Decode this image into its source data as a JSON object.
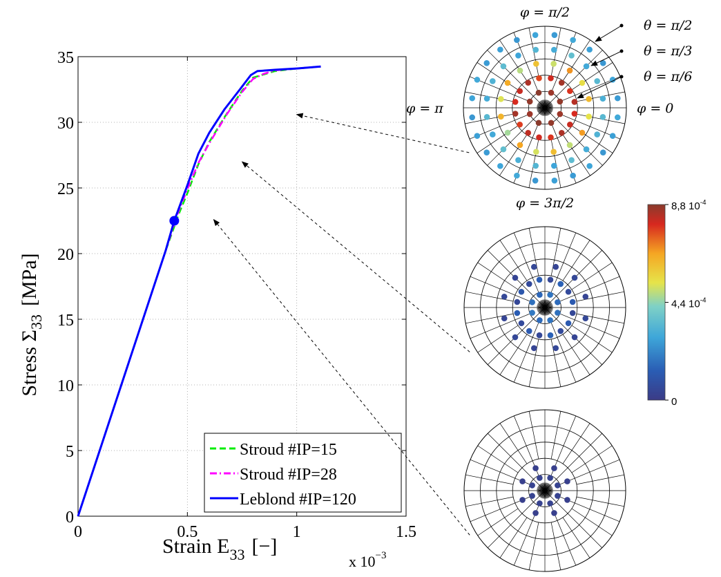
{
  "chart_data": {
    "type": "line",
    "xlabel_main": "Strain E",
    "xlabel_sub": "33",
    "xlabel_unit": "[−]",
    "ylabel_main": "Stress Σ",
    "ylabel_sub": "33",
    "ylabel_unit": "[MPa]",
    "x_multiplier_base": "x 10",
    "x_multiplier_exp": "−3",
    "xlim": [
      0,
      1.5
    ],
    "ylim": [
      0,
      35
    ],
    "xticks": [
      0,
      0.5,
      1,
      1.5
    ],
    "xtick_labels": [
      "0",
      "0.5",
      "1",
      "1.5"
    ],
    "yticks": [
      0,
      5,
      10,
      15,
      20,
      25,
      30,
      35
    ],
    "ytick_labels": [
      "0",
      "5",
      "10",
      "15",
      "20",
      "25",
      "30",
      "35"
    ],
    "grid": true,
    "legend_position": "bottom-right",
    "series": [
      {
        "name": "Stroud #IP=15",
        "color": "#00ee00",
        "style": "dashed",
        "x": [
          0,
          0.2,
          0.4,
          0.46,
          0.5,
          0.55,
          0.6,
          0.67,
          0.75,
          0.8,
          0.9,
          1.0,
          1.11
        ],
        "y": [
          0,
          10.1,
          20.2,
          23.0,
          24.6,
          26.8,
          28.5,
          30.4,
          32.4,
          33.4,
          33.9,
          34.1,
          34.25
        ]
      },
      {
        "name": "Stroud #IP=28",
        "color": "#ff00ff",
        "style": "dashdot",
        "x": [
          0,
          0.2,
          0.4,
          0.45,
          0.5,
          0.55,
          0.6,
          0.68,
          0.75,
          0.8,
          0.85,
          0.9,
          1.0,
          1.11
        ],
        "y": [
          0,
          10.1,
          20.2,
          22.8,
          24.9,
          26.9,
          28.4,
          30.6,
          32.3,
          33.3,
          33.7,
          33.95,
          34.1,
          34.25
        ]
      },
      {
        "name": "Leblond #IP=120",
        "color": "#0000ff",
        "style": "solid",
        "x": [
          0,
          0.2,
          0.4,
          0.44,
          0.5,
          0.55,
          0.6,
          0.67,
          0.74,
          0.79,
          0.82,
          0.9,
          1.0,
          1.11
        ],
        "y": [
          0,
          10.1,
          20.2,
          22.5,
          25.2,
          27.6,
          29.2,
          31.0,
          32.5,
          33.6,
          33.9,
          34.0,
          34.1,
          34.25
        ]
      }
    ],
    "marker_point": {
      "x": 0.44,
      "y": 22.5,
      "color": "#0000ff"
    },
    "polar_plots": [
      {
        "phi_labels": [
          "φ = π/2",
          "φ = π",
          "φ = 0",
          "φ = 3π/2"
        ],
        "theta_labels": [
          "θ = π/2",
          "θ = π/3",
          "θ = π/6"
        ],
        "arrow_target_strain": 1.0,
        "arrow_target_stress": 30.6,
        "rings": [
          {
            "r_frac": 0.2,
            "count": 8,
            "values": [
              8.7,
              8.6,
              8.8,
              8.7,
              8.6,
              8.8,
              8.7,
              8.6
            ]
          },
          {
            "r_frac": 0.37,
            "count": 16,
            "values": [
              8.3,
              7.8,
              8.5,
              8.0,
              7.6,
              8.4,
              8.1,
              7.9,
              8.5,
              7.7,
              8.2,
              8.0,
              7.8,
              8.4,
              8.1,
              7.9
            ]
          },
          {
            "r_frac": 0.55,
            "count": 16,
            "values": [
              6.2,
              5.4,
              6.8,
              5.0,
              6.0,
              4.8,
              6.5,
              5.2,
              6.3,
              4.6,
              6.6,
              5.1,
              6.1,
              4.9,
              6.7,
              5.3
            ]
          },
          {
            "r_frac": 0.72,
            "count": 20,
            "values": [
              3.1,
              3.4,
              2.9,
              3.6,
              3.0,
              3.3,
              2.8,
              3.5,
              3.2,
              3.0,
              3.4,
              2.9,
              3.6,
              3.1,
              3.3,
              2.8,
              3.5,
              3.0,
              3.2,
              3.4
            ]
          },
          {
            "r_frac": 0.9,
            "count": 24,
            "values": [
              2.6,
              2.8,
              2.5,
              2.7,
              2.9,
              2.6,
              2.8,
              2.5,
              2.7,
              2.6,
              2.9,
              2.8,
              2.5,
              2.7,
              2.6,
              2.8,
              2.9,
              2.5,
              2.7,
              2.6,
              2.8,
              2.5,
              2.7,
              2.9
            ]
          }
        ]
      },
      {
        "arrow_target_strain": 0.75,
        "arrow_target_stress": 27.0,
        "rings": [
          {
            "r_frac": 0.17,
            "count": 8,
            "values": [
              1.6,
              1.8,
              1.5,
              1.7,
              1.9,
              1.6,
              1.8,
              1.7
            ]
          },
          {
            "r_frac": 0.35,
            "count": 16,
            "values": [
              1.2,
              0.6,
              1.4,
              0.5,
              1.3,
              0.6,
              1.1,
              0.5,
              1.3,
              0.6,
              1.2,
              0.5,
              1.4,
              0.6,
              1.2,
              0.5
            ]
          },
          {
            "r_frac": 0.52,
            "count": 12,
            "values": [
              0.4,
              0.5,
              0.4,
              0.5,
              0.4,
              0.5,
              0.4,
              0.5,
              0.4,
              0.5,
              0.4,
              0.5
            ]
          }
        ]
      },
      {
        "arrow_target_strain": 0.62,
        "arrow_target_stress": 22.6,
        "rings": [
          {
            "r_frac": 0.17,
            "count": 8,
            "values": [
              0.3,
              0.3,
              0.3,
              0.3,
              0.3,
              0.3,
              0.3,
              0.3
            ]
          },
          {
            "r_frac": 0.3,
            "count": 8,
            "values": [
              0.2,
              0.2,
              0.2,
              0.2,
              0.2,
              0.2,
              0.2,
              0.2
            ]
          }
        ]
      }
    ],
    "colorbar": {
      "min": 0,
      "max": 8.8,
      "tick_values": [
        0,
        4.4,
        8.8
      ],
      "ticks": [
        {
          "base": "0",
          "exp": ""
        },
        {
          "base": "4,4 10",
          "exp": "-4"
        },
        {
          "base": "8,8 10",
          "exp": "-4"
        }
      ],
      "colormap": "jet"
    }
  }
}
